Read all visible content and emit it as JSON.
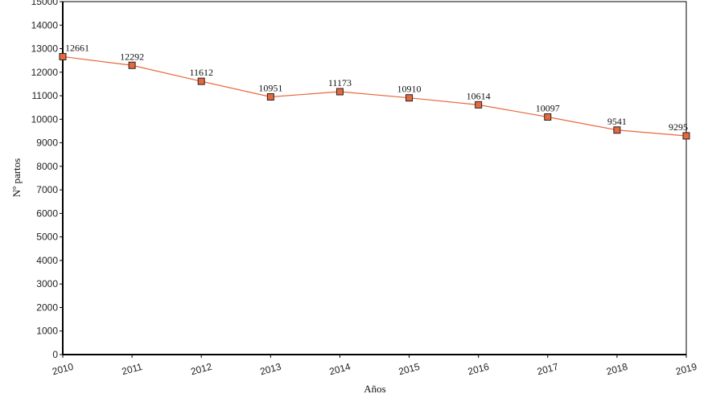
{
  "chart_data": {
    "type": "line",
    "title": "",
    "xlabel": "Años",
    "ylabel": "Nº partos",
    "x": [
      "2010",
      "2011",
      "2012",
      "2013",
      "2014",
      "2015",
      "2016",
      "2017",
      "2018",
      "2019"
    ],
    "series": [
      {
        "name": "Nº partos",
        "values": [
          12661,
          12292,
          11612,
          10951,
          11173,
          10910,
          10614,
          10097,
          9541,
          9295
        ],
        "color": "#e8683e"
      }
    ],
    "ylim": [
      0,
      15000
    ],
    "yticks": [
      0,
      1000,
      2000,
      3000,
      4000,
      5000,
      6000,
      7000,
      8000,
      9000,
      10000,
      11000,
      12000,
      13000,
      14000,
      15000
    ],
    "grid": false,
    "data_labels": true
  }
}
